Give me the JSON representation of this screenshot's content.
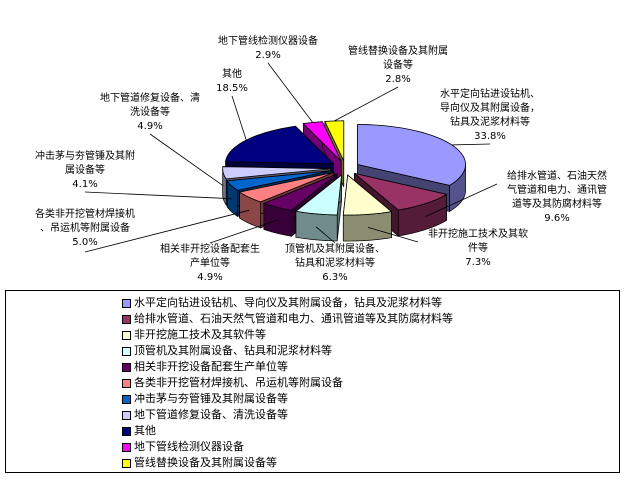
{
  "chart_data": {
    "type": "pie",
    "style": "3d-exploded",
    "legend_position": "bottom",
    "slices": [
      {
        "name": "水平定向钻进设钻机、导向仪及其附属设备，钻具及泥浆材料等",
        "label": [
          "水平定向钻进设钻机、",
          "导向仪及其附属设备，",
          "钻具及泥浆材料等"
        ],
        "value": 33.8,
        "value_label": "33.8%",
        "color": "#9999FF"
      },
      {
        "name": "给排水管道、石油天然气管道和电力、通讯管道等及其防腐材料等",
        "label": [
          "给排水管道、石油天然",
          "气管道和电力、通讯管",
          "道等及其防腐材料等"
        ],
        "value": 9.6,
        "value_label": "9.6%",
        "color": "#993366"
      },
      {
        "name": "非开挖施工技术及其软件等",
        "label": [
          "非开挖施工技术及其软",
          "件等"
        ],
        "value": 7.3,
        "value_label": "7.3%",
        "color": "#FFFFCC"
      },
      {
        "name": "顶管机及其附属设备、钻具和泥浆材料等",
        "label": [
          "顶管机及其附属设备、",
          "钻具和泥浆材料等"
        ],
        "value": 6.3,
        "value_label": "6.3%",
        "color": "#CCFFFF"
      },
      {
        "name": "相关非开挖设备配套生产单位等",
        "label": [
          "相关非开挖设备配套生",
          "产单位等"
        ],
        "value": 4.9,
        "value_label": "4.9%",
        "color": "#660066"
      },
      {
        "name": "各类非开挖管材焊接机、吊运机等附属设备",
        "label": [
          "各类非开挖管材焊接机",
          "、吊运机等附属设备"
        ],
        "value": 5.0,
        "value_label": "5.0%",
        "color": "#FF8080"
      },
      {
        "name": "冲击茅与夯管锤及其附属设备等",
        "label": [
          "冲击茅与夯管锤及其附",
          "属设备等"
        ],
        "value": 4.1,
        "value_label": "4.1%",
        "color": "#0066CC"
      },
      {
        "name": "地下管道修复设备、清洗设备等",
        "label": [
          "地下管道修复设备、清",
          "洗设备等"
        ],
        "value": 4.9,
        "value_label": "4.9%",
        "color": "#CCCCFF"
      },
      {
        "name": "其他",
        "label": [
          "其他"
        ],
        "value": 18.5,
        "value_label": "18.5%",
        "color": "#000080"
      },
      {
        "name": "地下管线检测仪器设备",
        "label": [
          "地下管线检测仪器设备"
        ],
        "value": 2.9,
        "value_label": "2.9%",
        "color": "#FF00FF"
      },
      {
        "name": "管线替换设备及其附属设备等",
        "label": [
          "管线替换设备及其附属",
          "设备等"
        ],
        "value": 2.8,
        "value_label": "2.8%",
        "color": "#FFFF00"
      }
    ]
  }
}
